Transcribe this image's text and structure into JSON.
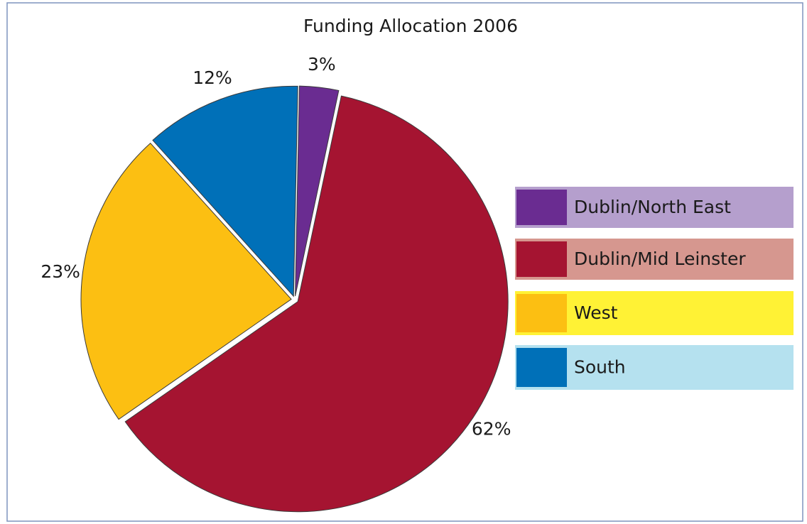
{
  "chart_data": {
    "type": "pie",
    "title": "Funding Allocation 2006",
    "categories": [
      "Dublin/North East",
      "Dublin/Mid Leinster",
      "West",
      "South"
    ],
    "values": [
      3,
      62,
      23,
      12
    ],
    "value_labels": [
      "3%",
      "62%",
      "23%",
      "12%"
    ],
    "colors": [
      "#6a2c91",
      "#a51431",
      "#fcbf12",
      "#0070b8"
    ],
    "legend_backgrounds": [
      "#b59fcd",
      "#d6978f",
      "#fff235",
      "#b5e1ef"
    ],
    "legend": "right"
  }
}
